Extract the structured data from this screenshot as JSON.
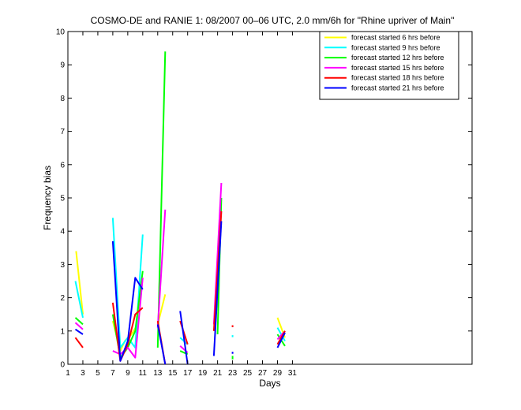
{
  "chart_data": {
    "type": "line",
    "title": "COSMO-DE and RANIE 1: 08/2007 00–06 UTC, 2.0 mm/6h for \"Rhine upriver of Main\"",
    "xlabel": "Days",
    "ylabel": "Frequency bias",
    "xlim": [
      1,
      55
    ],
    "ylim": [
      0,
      10
    ],
    "xticks": [
      1,
      3,
      5,
      7,
      9,
      11,
      13,
      15,
      17,
      19,
      21,
      23,
      25,
      27,
      29,
      31
    ],
    "yticks": [
      0,
      1,
      2,
      3,
      4,
      5,
      6,
      7,
      8,
      9,
      10
    ],
    "grid": false,
    "legend_position": "top-right",
    "series": [
      {
        "name": "forecast started 6 hrs before",
        "color": "#ffff00",
        "segments": [
          [
            [
              2.1,
              3.4
            ],
            [
              3.0,
              1.5
            ]
          ],
          [
            [
              7.0,
              1.3
            ],
            [
              8.0,
              0.4
            ],
            [
              8.6,
              0.7
            ],
            [
              9.5,
              0.9
            ],
            [
              10.3,
              1.2
            ],
            [
              11.0,
              2.6
            ]
          ],
          [
            [
              13.0,
              1.2
            ],
            [
              14.0,
              2.1
            ]
          ],
          [
            [
              29.0,
              1.4
            ],
            [
              30.0,
              0.8
            ]
          ]
        ]
      },
      {
        "name": "forecast started 9 hrs before",
        "color": "#00ffff",
        "segments": [
          [
            [
              2.0,
              2.5
            ],
            [
              3.0,
              1.4
            ]
          ],
          [
            [
              7.0,
              4.4
            ],
            [
              8.0,
              0.5
            ],
            [
              9.0,
              0.8
            ],
            [
              10.0,
              0.5
            ],
            [
              11.0,
              3.9
            ]
          ],
          [
            [
              16.0,
              0.8
            ],
            [
              17.0,
              0.6
            ]
          ],
          [
            [
              23.0,
              0.85
            ],
            [
              23.0,
              0.8
            ]
          ],
          [
            [
              29.0,
              1.1
            ],
            [
              30.0,
              0.7
            ]
          ]
        ]
      },
      {
        "name": "forecast started 12 hrs before",
        "color": "#00ff00",
        "segments": [
          [
            [
              2.0,
              1.4
            ],
            [
              3.0,
              1.2
            ]
          ],
          [
            [
              7.0,
              1.5
            ],
            [
              8.0,
              0.2
            ],
            [
              9.0,
              0.5
            ],
            [
              10.0,
              1.0
            ],
            [
              11.0,
              2.8
            ]
          ],
          [
            [
              13.0,
              0.5
            ],
            [
              14.0,
              9.4
            ]
          ],
          [
            [
              16.0,
              0.4
            ],
            [
              17.0,
              0.3
            ]
          ],
          [
            [
              21.0,
              0.9
            ],
            [
              21.5,
              5.0
            ]
          ],
          [
            [
              23.0,
              0.25
            ],
            [
              23.0,
              0.15
            ]
          ],
          [
            [
              29.0,
              0.9
            ],
            [
              30.0,
              0.55
            ]
          ]
        ]
      },
      {
        "name": "forecast started 15 hrs before",
        "color": "#ff00ff",
        "segments": [
          [
            [
              2.0,
              1.25
            ],
            [
              3.0,
              1.05
            ]
          ],
          [
            [
              7.0,
              0.4
            ],
            [
              8.0,
              0.3
            ],
            [
              9.0,
              0.5
            ],
            [
              10.0,
              0.2
            ],
            [
              11.0,
              2.6
            ]
          ],
          [
            [
              13.0,
              1.1
            ],
            [
              14.0,
              4.65
            ]
          ],
          [
            [
              16.0,
              0.55
            ],
            [
              17.0,
              0.35
            ]
          ],
          [
            [
              20.5,
              1.2
            ],
            [
              21.5,
              5.45
            ]
          ],
          [
            [
              29.0,
              0.75
            ],
            [
              30.0,
              1.0
            ]
          ]
        ]
      },
      {
        "name": "forecast started 18 hrs before",
        "color": "#ff0000",
        "segments": [
          [
            [
              2.0,
              0.8
            ],
            [
              3.0,
              0.5
            ]
          ],
          [
            [
              7.0,
              1.85
            ],
            [
              8.0,
              0.1
            ],
            [
              9.0,
              0.6
            ],
            [
              10.0,
              1.5
            ],
            [
              11.0,
              1.7
            ]
          ],
          [
            [
              13.0,
              1.3
            ],
            [
              14.0,
              0.0
            ]
          ],
          [
            [
              16.0,
              1.3
            ],
            [
              17.0,
              0.6
            ]
          ],
          [
            [
              20.5,
              1.0
            ],
            [
              21.5,
              4.6
            ]
          ],
          [
            [
              23.0,
              1.15
            ],
            [
              23.0,
              1.1
            ]
          ],
          [
            [
              29.0,
              0.6
            ],
            [
              30.0,
              1.0
            ]
          ]
        ]
      },
      {
        "name": "forecast started 21 hrs before",
        "color": "#0000ff",
        "segments": [
          [
            [
              2.0,
              1.05
            ],
            [
              3.0,
              0.9
            ]
          ],
          [
            [
              7.0,
              3.7
            ],
            [
              8.0,
              0.1
            ],
            [
              9.0,
              0.7
            ],
            [
              10.0,
              2.6
            ],
            [
              11.0,
              2.25
            ]
          ],
          [
            [
              13.0,
              1.2
            ],
            [
              14.0,
              0.0
            ]
          ],
          [
            [
              16.0,
              1.6
            ],
            [
              17.0,
              0.0
            ]
          ],
          [
            [
              20.5,
              0.25
            ],
            [
              21.5,
              4.3
            ]
          ],
          [
            [
              23.0,
              0.35
            ],
            [
              23.0,
              0.3
            ]
          ],
          [
            [
              29.0,
              0.5
            ],
            [
              30.0,
              0.95
            ]
          ]
        ]
      }
    ]
  }
}
